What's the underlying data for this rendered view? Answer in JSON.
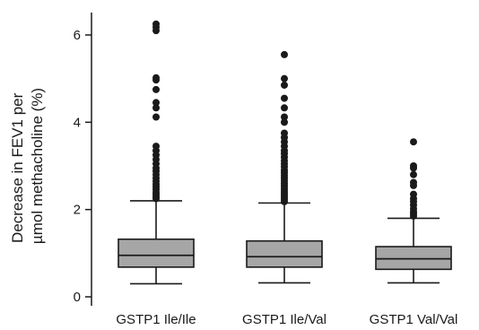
{
  "chart_data": {
    "type": "box",
    "ylabel": "Decrease in FEV1 per µmol methacholine (%)",
    "ylabel_lines": [
      "Decrease in FEV1 per",
      "µmol methacholine (%)"
    ],
    "ylim": [
      0,
      6.5
    ],
    "yticks": [
      0,
      2,
      4,
      6
    ],
    "grid": false,
    "colors": {
      "box_fill": "#a6a6a6",
      "line": "#1a1a1a",
      "outlier": "#1a1a1a"
    },
    "categories": [
      "GSTP1 Ile/Ile",
      "GSTP1 Ile/Val",
      "GSTP1 Val/Val"
    ],
    "boxes": [
      {
        "label": "GSTP1 Ile/Ile",
        "whisker_low": 0.3,
        "q1": 0.68,
        "median": 0.95,
        "q3": 1.32,
        "whisker_high": 2.2,
        "outliers": [
          6.25,
          6.18,
          6.1,
          5.02,
          4.97,
          4.75,
          4.45,
          4.33,
          4.12,
          3.45,
          3.35,
          3.25,
          3.15,
          3.05,
          2.95,
          2.88,
          2.8,
          2.72,
          2.65,
          2.58,
          2.52,
          2.46,
          2.4,
          2.35,
          2.3,
          2.25
        ]
      },
      {
        "label": "GSTP1 Ile/Val",
        "whisker_low": 0.32,
        "q1": 0.68,
        "median": 0.92,
        "q3": 1.28,
        "whisker_high": 2.15,
        "outliers": [
          5.55,
          5.0,
          4.85,
          4.55,
          4.33,
          4.12,
          4.0,
          3.75,
          3.65,
          3.55,
          3.45,
          3.35,
          3.28,
          3.2,
          3.12,
          3.05,
          2.98,
          2.9,
          2.84,
          2.78,
          2.72,
          2.66,
          2.6,
          2.54,
          2.48,
          2.43,
          2.38,
          2.33,
          2.28,
          2.23,
          2.18
        ]
      },
      {
        "label": "GSTP1 Val/Val",
        "whisker_low": 0.32,
        "q1": 0.63,
        "median": 0.87,
        "q3": 1.15,
        "whisker_high": 1.8,
        "outliers": [
          3.55,
          3.0,
          2.95,
          2.8,
          2.62,
          2.55,
          2.35,
          2.25,
          2.18,
          2.1,
          2.02,
          1.95,
          1.9,
          1.85
        ]
      }
    ]
  }
}
